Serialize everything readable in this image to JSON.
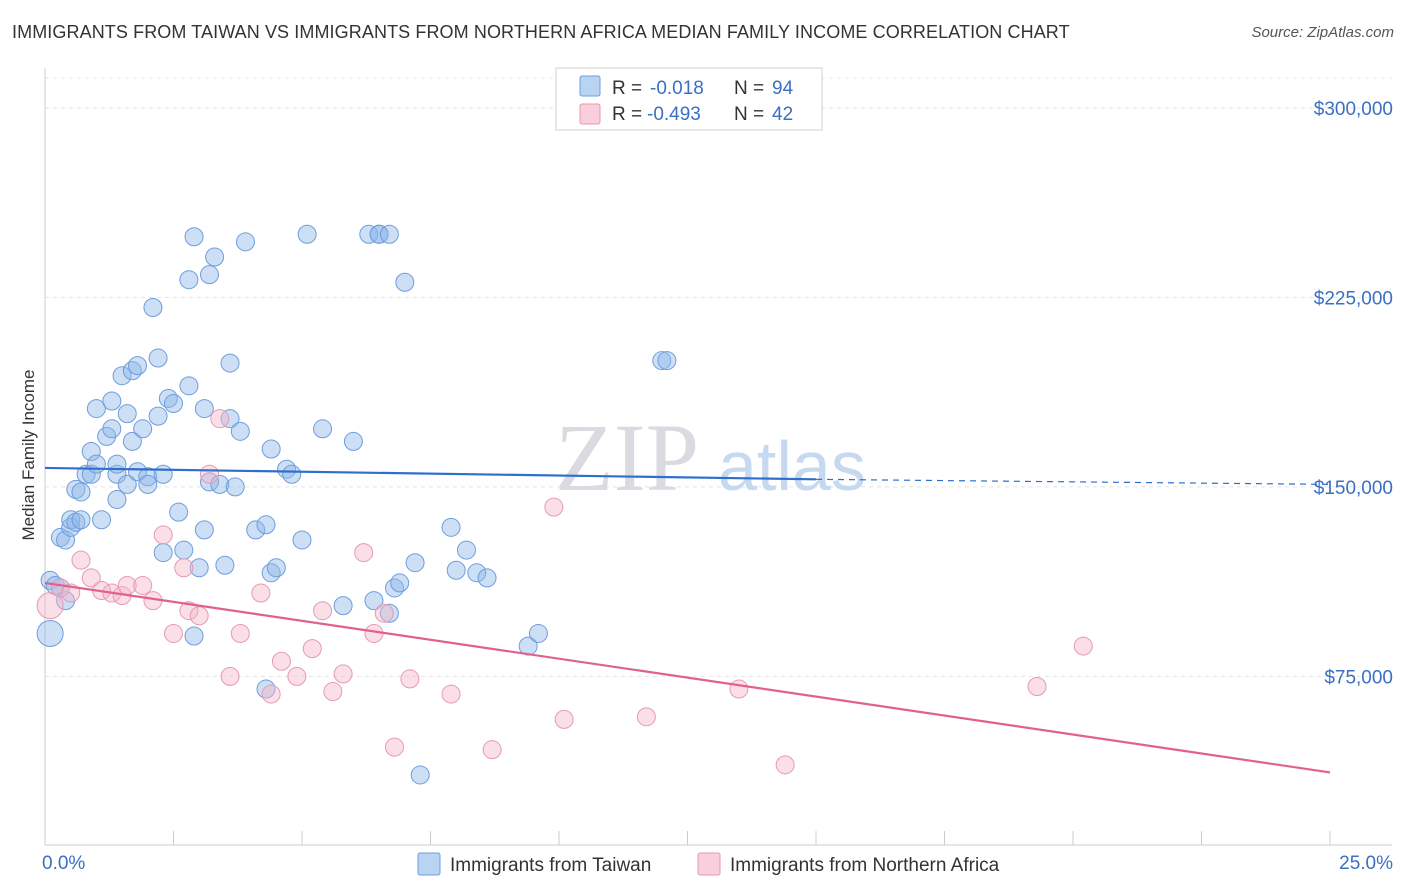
{
  "header": {
    "title": "IMMIGRANTS FROM TAIWAN VS IMMIGRANTS FROM NORTHERN AFRICA MEDIAN FAMILY INCOME CORRELATION CHART",
    "source": "Source: ZipAtlas.com"
  },
  "watermark": {
    "zip": "ZIP",
    "atlas": "atlas"
  },
  "legend_top": {
    "rows": [
      {
        "r_label": "R =",
        "r_value": "-0.018",
        "n_label": "N =",
        "n_value": "94"
      },
      {
        "r_label": "R =",
        "r_value": "-0.493",
        "n_label": "N =",
        "n_value": "42"
      }
    ]
  },
  "chart_data": {
    "type": "scatter",
    "title": "IMMIGRANTS FROM TAIWAN VS IMMIGRANTS FROM NORTHERN AFRICA MEDIAN FAMILY INCOME CORRELATION CHART",
    "xlabel": "",
    "ylabel": "Median Family Income",
    "xlim": [
      0,
      25
    ],
    "ylim": [
      15000,
      315000
    ],
    "x_tick_labels": [
      "0.0%",
      "25.0%"
    ],
    "y_ticks": [
      75000,
      150000,
      225000,
      300000
    ],
    "y_tick_labels": [
      "$75,000",
      "$150,000",
      "$225,000",
      "$300,000"
    ],
    "grid": true,
    "legend_position": "bottom",
    "series": [
      {
        "name": "Immigrants from Taiwan",
        "color": "#8fb8e8",
        "line_color": "#2f6fcc",
        "trend": {
          "x": [
            0,
            15
          ],
          "y": [
            157500,
            153000
          ],
          "dashed_to_x": 25,
          "dashed_to_y": 151000
        },
        "points": [
          [
            0.1,
            92000
          ],
          [
            0.1,
            113000
          ],
          [
            0.2,
            111000
          ],
          [
            0.3,
            110000
          ],
          [
            0.3,
            130000
          ],
          [
            0.4,
            129000
          ],
          [
            0.5,
            134000
          ],
          [
            0.5,
            137000
          ],
          [
            0.6,
            136000
          ],
          [
            0.6,
            149000
          ],
          [
            0.7,
            148000
          ],
          [
            0.7,
            137000
          ],
          [
            0.8,
            155000
          ],
          [
            0.9,
            164000
          ],
          [
            0.9,
            155000
          ],
          [
            1.0,
            159000
          ],
          [
            1.0,
            181000
          ],
          [
            1.1,
            137000
          ],
          [
            1.2,
            170000
          ],
          [
            1.3,
            173000
          ],
          [
            1.3,
            184000
          ],
          [
            1.4,
            155000
          ],
          [
            1.4,
            159000
          ],
          [
            1.4,
            145000
          ],
          [
            1.5,
            194000
          ],
          [
            1.6,
            151000
          ],
          [
            1.6,
            179000
          ],
          [
            1.7,
            196000
          ],
          [
            1.7,
            168000
          ],
          [
            1.8,
            198000
          ],
          [
            1.8,
            156000
          ],
          [
            1.9,
            173000
          ],
          [
            2.0,
            154000
          ],
          [
            2.0,
            151000
          ],
          [
            2.1,
            221000
          ],
          [
            2.2,
            178000
          ],
          [
            2.2,
            201000
          ],
          [
            2.3,
            124000
          ],
          [
            2.3,
            155000
          ],
          [
            2.4,
            185000
          ],
          [
            2.5,
            183000
          ],
          [
            2.6,
            140000
          ],
          [
            2.7,
            125000
          ],
          [
            2.8,
            190000
          ],
          [
            2.8,
            232000
          ],
          [
            2.9,
            91000
          ],
          [
            2.9,
            249000
          ],
          [
            3.0,
            118000
          ],
          [
            3.1,
            133000
          ],
          [
            3.1,
            181000
          ],
          [
            3.2,
            152000
          ],
          [
            3.2,
            234000
          ],
          [
            3.3,
            241000
          ],
          [
            3.4,
            151000
          ],
          [
            3.5,
            119000
          ],
          [
            3.6,
            199000
          ],
          [
            3.6,
            177000
          ],
          [
            3.7,
            150000
          ],
          [
            3.8,
            172000
          ],
          [
            3.9,
            247000
          ],
          [
            4.1,
            133000
          ],
          [
            4.3,
            70000
          ],
          [
            4.3,
            135000
          ],
          [
            4.4,
            116000
          ],
          [
            4.4,
            165000
          ],
          [
            4.5,
            118000
          ],
          [
            4.7,
            157000
          ],
          [
            4.8,
            155000
          ],
          [
            5.0,
            129000
          ],
          [
            5.1,
            250000
          ],
          [
            5.4,
            173000
          ],
          [
            5.8,
            103000
          ],
          [
            6.0,
            168000
          ],
          [
            6.3,
            250000
          ],
          [
            6.4,
            105000
          ],
          [
            6.5,
            250000
          ],
          [
            6.5,
            250000
          ],
          [
            6.7,
            100000
          ],
          [
            6.7,
            250000
          ],
          [
            6.8,
            110000
          ],
          [
            6.9,
            112000
          ],
          [
            7.0,
            231000
          ],
          [
            7.2,
            120000
          ],
          [
            7.3,
            36000
          ],
          [
            7.9,
            134000
          ],
          [
            8.0,
            117000
          ],
          [
            8.2,
            125000
          ],
          [
            8.4,
            116000
          ],
          [
            8.6,
            114000
          ],
          [
            9.4,
            87000
          ],
          [
            9.6,
            92000
          ],
          [
            12.0,
            200000
          ],
          [
            12.1,
            200000
          ],
          [
            0.4,
            105000
          ]
        ]
      },
      {
        "name": "Immigrants from Northern Africa",
        "color": "#f4b7c9",
        "line_color": "#e0608e",
        "trend": {
          "x": [
            0,
            25
          ],
          "y": [
            112000,
            37000
          ]
        },
        "points": [
          [
            0.1,
            103000
          ],
          [
            0.3,
            110000
          ],
          [
            0.5,
            108000
          ],
          [
            0.7,
            121000
          ],
          [
            0.9,
            114000
          ],
          [
            1.1,
            109000
          ],
          [
            1.3,
            108000
          ],
          [
            1.5,
            107000
          ],
          [
            1.6,
            111000
          ],
          [
            1.9,
            111000
          ],
          [
            2.1,
            105000
          ],
          [
            2.3,
            131000
          ],
          [
            2.5,
            92000
          ],
          [
            2.7,
            118000
          ],
          [
            2.8,
            101000
          ],
          [
            3.0,
            99000
          ],
          [
            3.2,
            155000
          ],
          [
            3.4,
            177000
          ],
          [
            3.6,
            75000
          ],
          [
            3.8,
            92000
          ],
          [
            4.2,
            108000
          ],
          [
            4.4,
            68000
          ],
          [
            4.6,
            81000
          ],
          [
            4.9,
            75000
          ],
          [
            5.2,
            86000
          ],
          [
            5.4,
            101000
          ],
          [
            5.6,
            69000
          ],
          [
            5.8,
            76000
          ],
          [
            6.2,
            124000
          ],
          [
            6.4,
            92000
          ],
          [
            6.6,
            100000
          ],
          [
            6.8,
            47000
          ],
          [
            7.1,
            74000
          ],
          [
            7.9,
            68000
          ],
          [
            8.7,
            46000
          ],
          [
            9.9,
            142000
          ],
          [
            10.1,
            58000
          ],
          [
            11.7,
            59000
          ],
          [
            13.5,
            70000
          ],
          [
            14.4,
            40000
          ],
          [
            19.3,
            71000
          ],
          [
            20.2,
            87000
          ]
        ]
      }
    ]
  }
}
